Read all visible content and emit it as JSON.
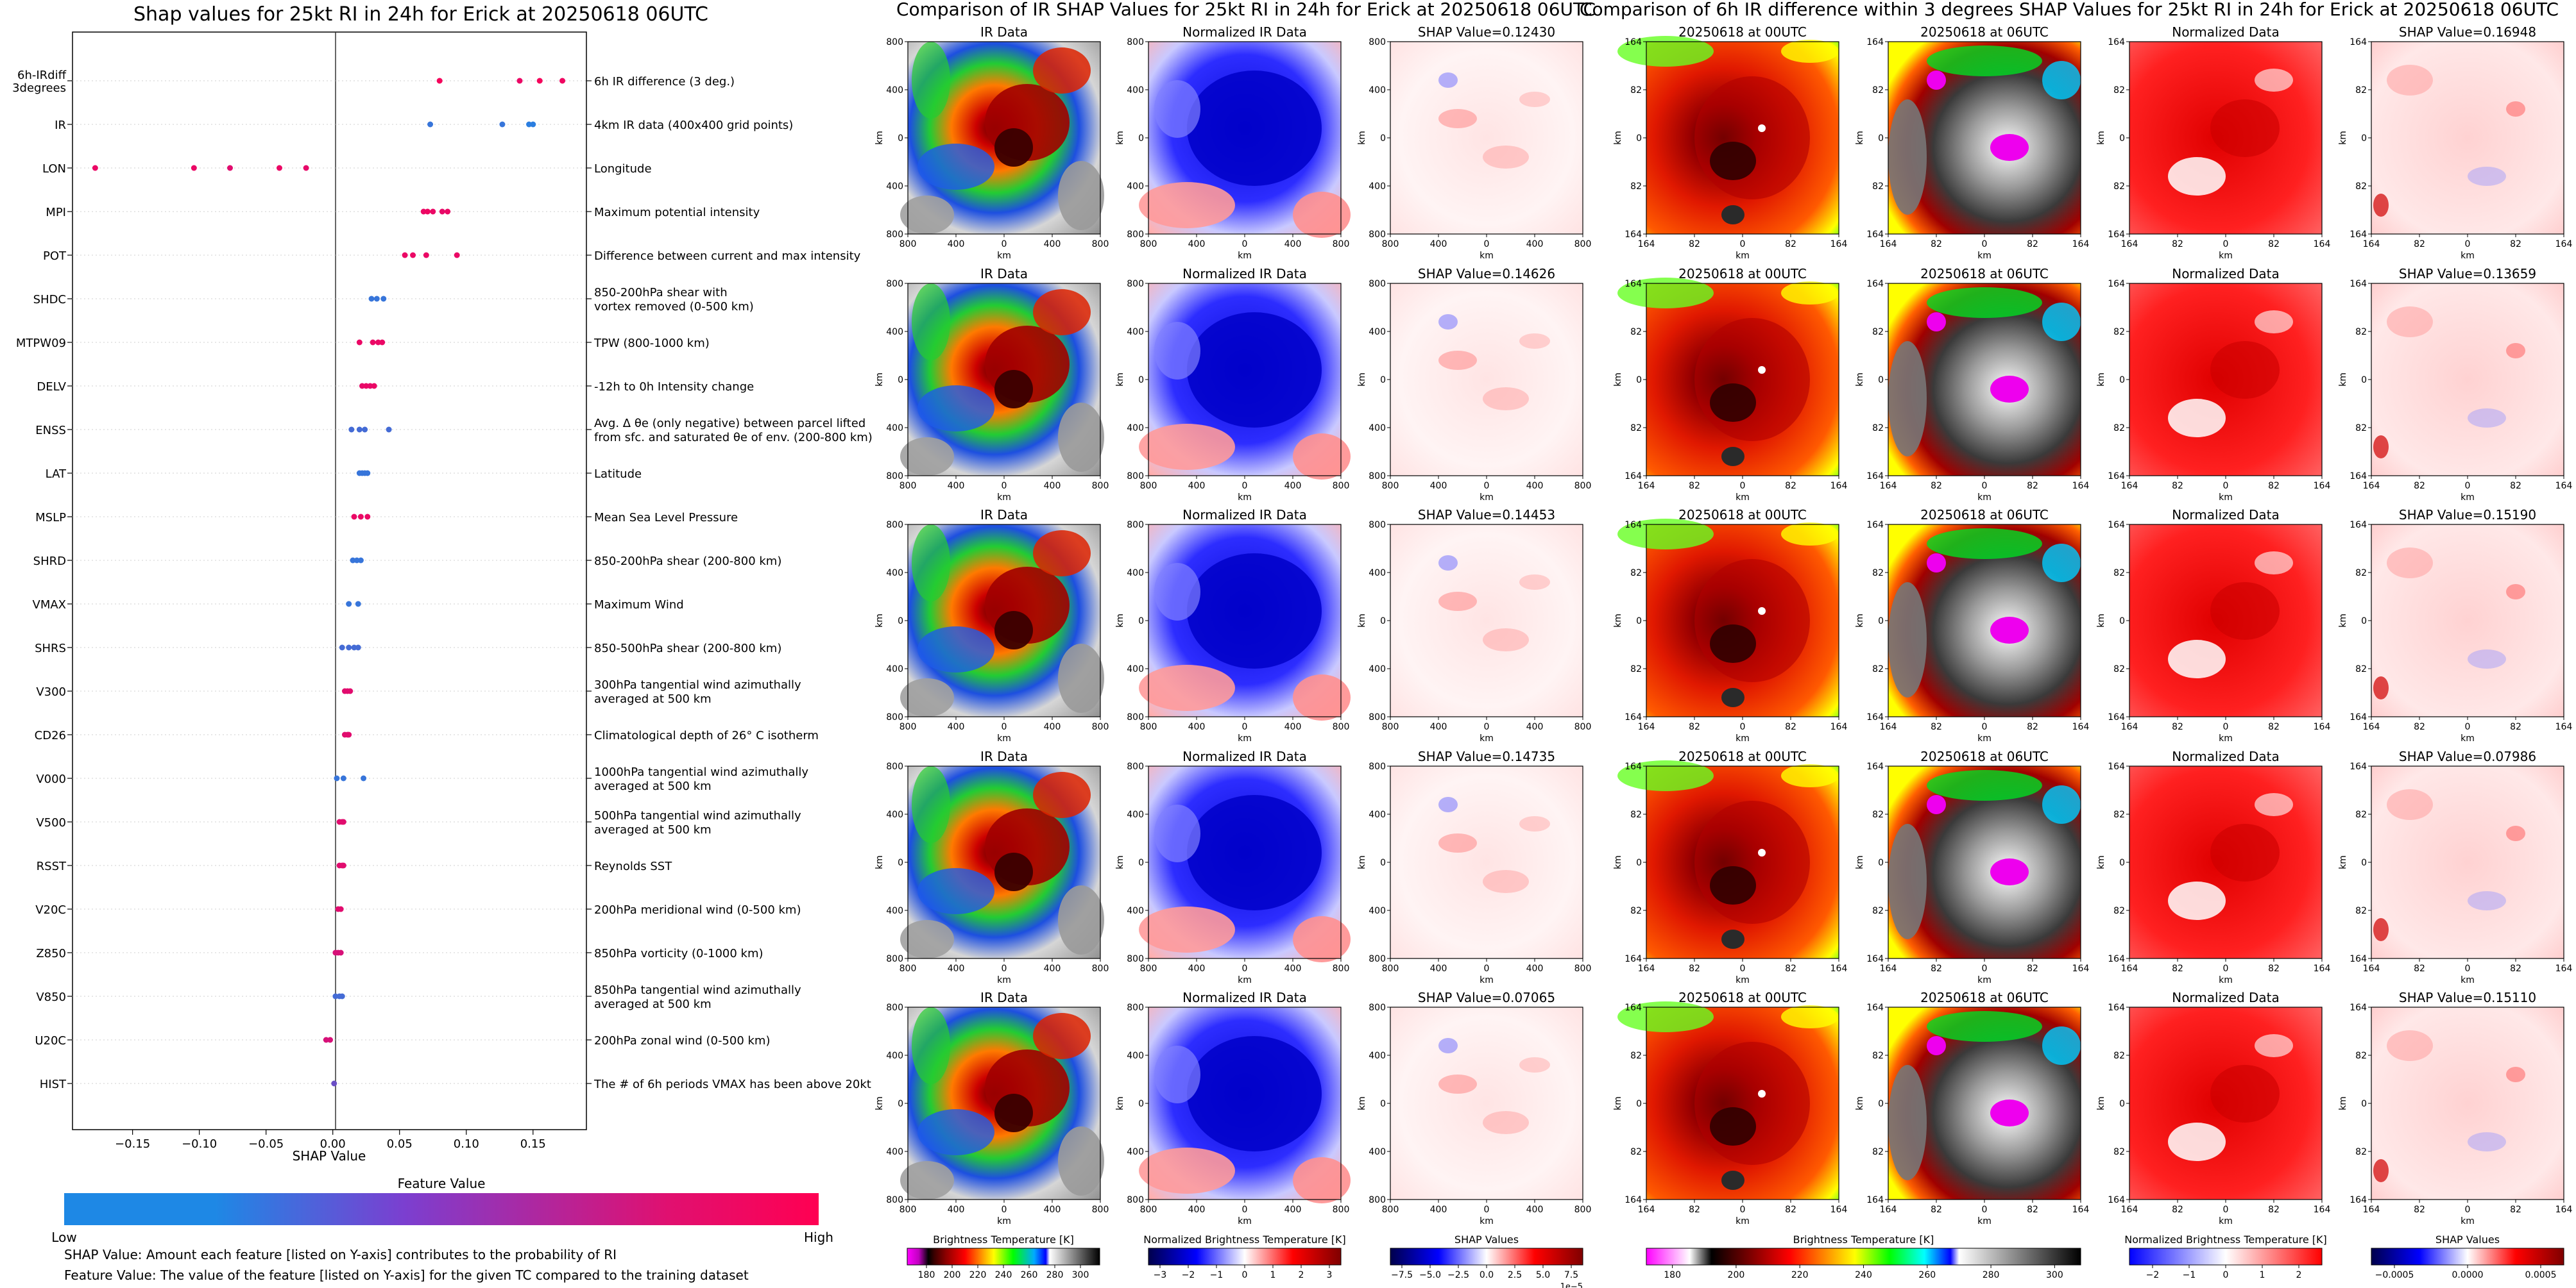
{
  "left_panel": {
    "title": "Shap values for 25kt RI in 24h for Erick at 20250618 06UTC",
    "xlabel": "SHAP Value",
    "xticks": [
      {
        "v": -0.15,
        "label": "−0.15"
      },
      {
        "v": -0.1,
        "label": "−0.10"
      },
      {
        "v": -0.05,
        "label": "−0.05"
      },
      {
        "v": 0.0,
        "label": "0.00"
      },
      {
        "v": 0.05,
        "label": "0.05"
      },
      {
        "v": 0.1,
        "label": "0.10"
      },
      {
        "v": 0.15,
        "label": "0.15"
      }
    ],
    "colorbar_title": "Feature Value",
    "colorbar_low": "Low",
    "colorbar_high": "High",
    "note1": "SHAP Value: Amount each feature [listed on Y-axis] contributes to the probability of RI",
    "note2": "Feature Value: The value of the feature [listed on Y-axis] for the given TC compared to the training dataset"
  },
  "chart_data": {
    "type": "scatter",
    "title": "Shap values for 25kt RI in 24h for Erick at 20250618 06UTC",
    "xlabel": "SHAP Value",
    "xlim": [
      -0.195,
      0.19
    ],
    "features": [
      {
        "name": [
          "6h-IRdiff",
          "3degrees"
        ],
        "desc": [
          "6h IR difference (3 deg.)"
        ],
        "points": [
          [
            0.08,
            0.95
          ],
          [
            0.14,
            0.9
          ],
          [
            0.155,
            0.95
          ],
          [
            0.172,
            0.92
          ]
        ]
      },
      {
        "name": [
          "IR"
        ],
        "desc": [
          "4km IR data (400x400 grid points)"
        ],
        "points": [
          [
            0.073,
            0.1
          ],
          [
            0.127,
            0.1
          ],
          [
            0.147,
            0.05
          ],
          [
            0.15,
            0.05
          ]
        ]
      },
      {
        "name": [
          "LON"
        ],
        "desc": [
          "Longitude"
        ],
        "points": [
          [
            -0.178,
            0.9
          ],
          [
            -0.104,
            0.9
          ],
          [
            -0.077,
            0.85
          ],
          [
            -0.04,
            0.9
          ],
          [
            -0.02,
            0.88
          ]
        ]
      },
      {
        "name": [
          "MPI"
        ],
        "desc": [
          "Maximum potential intensity"
        ],
        "points": [
          [
            0.068,
            0.9
          ],
          [
            0.071,
            0.92
          ],
          [
            0.075,
            0.9
          ],
          [
            0.082,
            0.88
          ],
          [
            0.086,
            0.9
          ]
        ]
      },
      {
        "name": [
          "POT"
        ],
        "desc": [
          "Difference between current and max intensity"
        ],
        "points": [
          [
            0.054,
            0.9
          ],
          [
            0.06,
            0.9
          ],
          [
            0.07,
            0.9
          ],
          [
            0.093,
            0.9
          ]
        ]
      },
      {
        "name": [
          "SHDC"
        ],
        "desc": [
          "850-200hPa shear with",
          "vortex removed (0-500 km)"
        ],
        "points": [
          [
            0.029,
            0.1
          ],
          [
            0.033,
            0.1
          ],
          [
            0.038,
            0.1
          ]
        ]
      },
      {
        "name": [
          "MTPW09"
        ],
        "desc": [
          "TPW (800-1000 km)"
        ],
        "points": [
          [
            0.02,
            0.9
          ],
          [
            0.03,
            0.9
          ],
          [
            0.034,
            0.9
          ],
          [
            0.037,
            0.9
          ]
        ]
      },
      {
        "name": [
          "DELV"
        ],
        "desc": [
          "-12h to 0h Intensity change"
        ],
        "points": [
          [
            0.022,
            0.88
          ],
          [
            0.025,
            0.9
          ],
          [
            0.028,
            0.88
          ],
          [
            0.031,
            0.9
          ]
        ]
      },
      {
        "name": [
          "ENSS"
        ],
        "desc": [
          "Avg. Δ θe (only negative) between parcel lifted",
          "from sfc. and saturated θe of env. (200-800 km)"
        ],
        "points": [
          [
            0.014,
            0.15
          ],
          [
            0.02,
            0.15
          ],
          [
            0.024,
            0.15
          ],
          [
            0.042,
            0.15
          ]
        ]
      },
      {
        "name": [
          "LAT"
        ],
        "desc": [
          "Latitude"
        ],
        "points": [
          [
            0.02,
            0.1
          ],
          [
            0.022,
            0.1
          ],
          [
            0.024,
            0.1
          ],
          [
            0.026,
            0.1
          ]
        ]
      },
      {
        "name": [
          "MSLP"
        ],
        "desc": [
          "Mean Sea Level Pressure"
        ],
        "points": [
          [
            0.016,
            0.9
          ],
          [
            0.021,
            0.9
          ],
          [
            0.026,
            0.9
          ]
        ]
      },
      {
        "name": [
          "SHRD"
        ],
        "desc": [
          "850-200hPa shear (200-800 km)"
        ],
        "points": [
          [
            0.015,
            0.1
          ],
          [
            0.018,
            0.1
          ],
          [
            0.021,
            0.1
          ]
        ]
      },
      {
        "name": [
          "VMAX"
        ],
        "desc": [
          "Maximum Wind"
        ],
        "points": [
          [
            0.012,
            0.1
          ],
          [
            0.019,
            0.1
          ]
        ]
      },
      {
        "name": [
          "SHRS"
        ],
        "desc": [
          "850-500hPa shear (200-800 km)"
        ],
        "points": [
          [
            0.007,
            0.15
          ],
          [
            0.012,
            0.15
          ],
          [
            0.016,
            0.15
          ],
          [
            0.019,
            0.15
          ]
        ]
      },
      {
        "name": [
          "V300"
        ],
        "desc": [
          "300hPa tangential wind azimuthally",
          "averaged at 500 km"
        ],
        "points": [
          [
            0.009,
            0.85
          ],
          [
            0.011,
            0.85
          ],
          [
            0.013,
            0.85
          ]
        ]
      },
      {
        "name": [
          "CD26"
        ],
        "desc": [
          "Climatological depth of 26° C isotherm"
        ],
        "points": [
          [
            0.009,
            0.85
          ],
          [
            0.011,
            0.85
          ],
          [
            0.012,
            0.85
          ]
        ]
      },
      {
        "name": [
          "V000"
        ],
        "desc": [
          "1000hPa tangential wind azimuthally",
          "averaged at 500 km"
        ],
        "points": [
          [
            0.003,
            0.1
          ],
          [
            0.008,
            0.1
          ],
          [
            0.023,
            0.1
          ]
        ]
      },
      {
        "name": [
          "V500"
        ],
        "desc": [
          "500hPa tangential wind azimuthally",
          "averaged at 500 km"
        ],
        "points": [
          [
            0.005,
            0.85
          ],
          [
            0.007,
            0.85
          ],
          [
            0.008,
            0.85
          ]
        ]
      },
      {
        "name": [
          "RSST"
        ],
        "desc": [
          "Reynolds SST"
        ],
        "points": [
          [
            0.005,
            0.85
          ],
          [
            0.007,
            0.85
          ],
          [
            0.008,
            0.85
          ]
        ]
      },
      {
        "name": [
          "V20C"
        ],
        "desc": [
          "200hPa meridional wind (0-500 km)"
        ],
        "points": [
          [
            0.004,
            0.85
          ],
          [
            0.006,
            0.85
          ]
        ]
      },
      {
        "name": [
          "Z850"
        ],
        "desc": [
          "850hPa vorticity (0-1000 km)"
        ],
        "points": [
          [
            0.002,
            0.8
          ],
          [
            0.004,
            0.8
          ],
          [
            0.006,
            0.8
          ]
        ]
      },
      {
        "name": [
          "V850"
        ],
        "desc": [
          "850hPa tangential wind azimuthally",
          "averaged at 500 km"
        ],
        "points": [
          [
            0.002,
            0.15
          ],
          [
            0.005,
            0.15
          ],
          [
            0.007,
            0.15
          ]
        ]
      },
      {
        "name": [
          "U20C"
        ],
        "desc": [
          "200hPa zonal wind (0-500 km)"
        ],
        "points": [
          [
            -0.005,
            0.8
          ],
          [
            -0.002,
            0.8
          ]
        ]
      },
      {
        "name": [
          "HIST"
        ],
        "desc": [
          "The # of 6h periods VMAX has been above 20kt"
        ],
        "points": [
          [
            0.001,
            0.3
          ]
        ]
      }
    ]
  },
  "middle_section": {
    "suptitle": "Comparison of IR SHAP Values for 25kt RI in 24h for Erick at 20250618 06UTC",
    "col_titles": [
      "IR Data",
      "Normalized IR Data"
    ],
    "shap_titles": [
      "SHAP Value=0.12430",
      "SHAP Value=0.14626",
      "SHAP Value=0.14453",
      "SHAP Value=0.14735",
      "SHAP Value=0.07065"
    ],
    "axis_label": "km",
    "ticks": [
      "800",
      "400",
      "0",
      "400",
      "800"
    ],
    "colorbars": [
      {
        "title": "Brightness Temperature [K]",
        "ticks": [
          "180",
          "200",
          "220",
          "240",
          "260",
          "280",
          "300"
        ]
      },
      {
        "title": "Normalized Brightness Temperature [K]",
        "ticks": [
          "−3",
          "−2",
          "−1",
          "0",
          "1",
          "2",
          "3"
        ]
      },
      {
        "title": "SHAP Values",
        "ticks": [
          "−7.5",
          "−5.0",
          "−2.5",
          "0.0",
          "2.5",
          "5.0",
          "7.5"
        ],
        "offset": "1e−5"
      }
    ]
  },
  "right_section": {
    "suptitle": "Comparison of 6h IR difference within 3 degrees SHAP Values for 25kt RI in 24h for Erick at 20250618 06UTC",
    "col_titles": [
      "20250618 at 00UTC",
      "20250618 at 06UTC",
      "Normalized Data"
    ],
    "shap_titles": [
      "SHAP Value=0.16948",
      "SHAP Value=0.13659",
      "SHAP Value=0.15190",
      "SHAP Value=0.07986",
      "SHAP Value=0.15110"
    ],
    "axis_label": "km",
    "ticks": [
      "164",
      "82",
      "0",
      "82",
      "164"
    ],
    "colorbars": [
      {
        "title": "Brightness Temperature [K]",
        "ticks": [
          "180",
          "200",
          "220",
          "240",
          "260",
          "280",
          "300"
        ]
      },
      {
        "title": "Normalized Brightness Temperature [K]",
        "ticks": [
          "−2",
          "−1",
          "0",
          "1",
          "2"
        ]
      },
      {
        "title": "SHAP Values",
        "ticks": [
          "−0.0005",
          "0.0000",
          "0.0005"
        ]
      }
    ]
  },
  "colors": {
    "low": "#1E88E5",
    "mid": "#9C27B0",
    "high": "#FF0052"
  }
}
